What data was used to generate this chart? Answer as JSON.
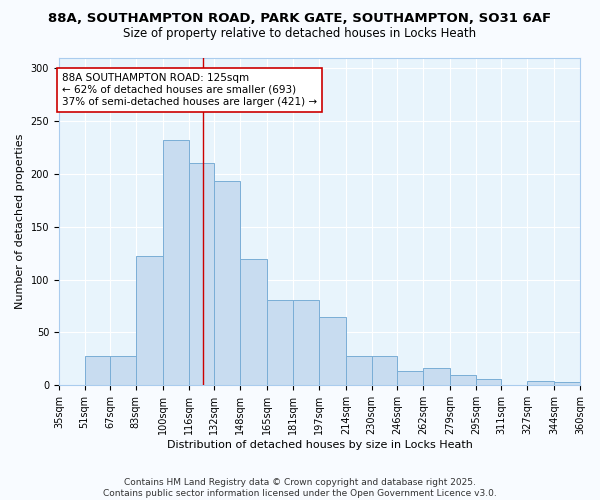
{
  "title_line1": "88A, SOUTHAMPTON ROAD, PARK GATE, SOUTHAMPTON, SO31 6AF",
  "title_line2": "Size of property relative to detached houses in Locks Heath",
  "xlabel": "Distribution of detached houses by size in Locks Heath",
  "ylabel": "Number of detached properties",
  "bar_color": "#c8dcf0",
  "bar_edge_color": "#7aaed6",
  "background_color": "#e8f4fc",
  "fig_background": "#f8fbff",
  "grid_color": "#ffffff",
  "categories": [
    "35sqm",
    "51sqm",
    "67sqm",
    "83sqm",
    "100sqm",
    "116sqm",
    "132sqm",
    "148sqm",
    "165sqm",
    "181sqm",
    "197sqm",
    "214sqm",
    "230sqm",
    "246sqm",
    "262sqm",
    "279sqm",
    "295sqm",
    "311sqm",
    "327sqm",
    "344sqm",
    "360sqm"
  ],
  "bar_heights": [
    0,
    28,
    28,
    122,
    232,
    210,
    193,
    119,
    81,
    81,
    65,
    28,
    28,
    14,
    16,
    10,
    6,
    0,
    4,
    3,
    0
  ],
  "vline_x": 125,
  "vline_color": "#cc0000",
  "annotation_text": "88A SOUTHAMPTON ROAD: 125sqm\n← 62% of detached houses are smaller (693)\n37% of semi-detached houses are larger (421) →",
  "ylim": [
    0,
    310
  ],
  "yticks": [
    0,
    50,
    100,
    150,
    200,
    250,
    300
  ],
  "footer": "Contains HM Land Registry data © Crown copyright and database right 2025.\nContains public sector information licensed under the Open Government Licence v3.0.",
  "title_fontsize": 9.5,
  "subtitle_fontsize": 8.5,
  "axis_label_fontsize": 8,
  "tick_fontsize": 7,
  "annotation_fontsize": 7.5,
  "footer_fontsize": 6.5
}
